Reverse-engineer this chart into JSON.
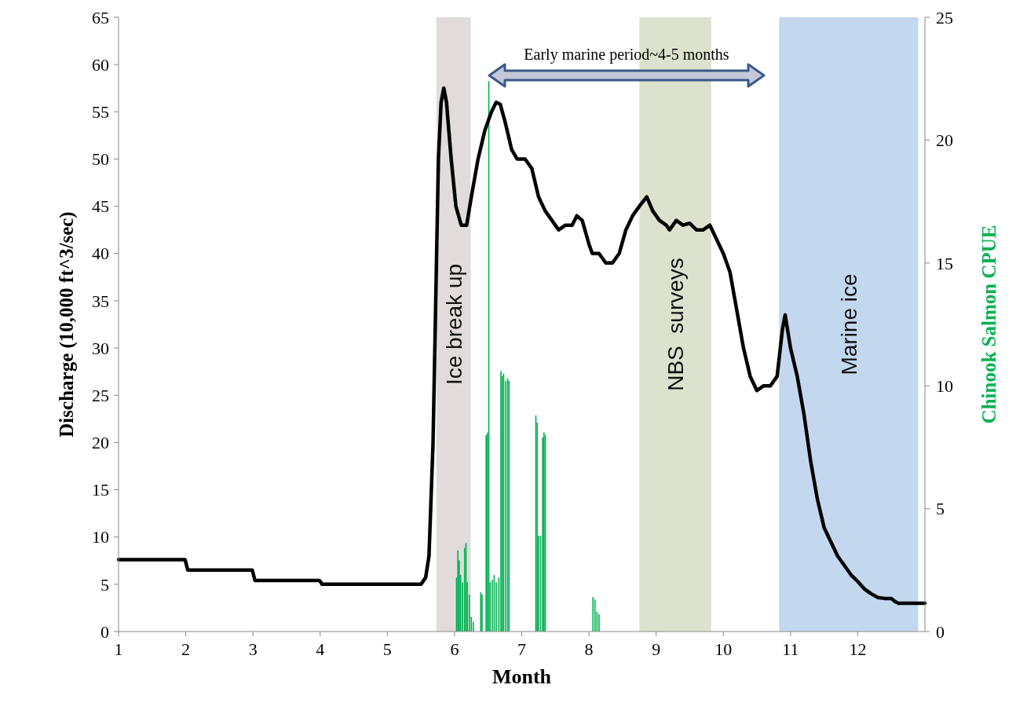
{
  "chart_data": {
    "type": "line",
    "xlabel": "Month",
    "ylabel": "Discharge (10,000 ft^3/sec)",
    "y2label": "Chinook Salmon CPUE",
    "xlim": [
      1,
      13
    ],
    "xticks": [
      1,
      2,
      3,
      4,
      5,
      6,
      7,
      8,
      9,
      10,
      11,
      12
    ],
    "ylim": [
      0,
      65
    ],
    "yticks": [
      0,
      5,
      10,
      15,
      20,
      25,
      30,
      35,
      40,
      45,
      50,
      55,
      60,
      65
    ],
    "y2lim": [
      0,
      25
    ],
    "y2ticks": [
      0,
      5,
      10,
      15,
      20,
      25
    ],
    "series": [
      {
        "color": "#000000",
        "x": [
          1,
          1.99,
          2.03,
          2.99,
          3.03,
          3.99,
          4.03,
          5.5,
          5.57,
          5.62,
          5.68,
          5.72,
          5.76,
          5.8,
          5.84,
          5.88,
          5.95,
          6.02,
          6.1,
          6.18,
          6.25,
          6.35,
          6.45,
          6.55,
          6.62,
          6.68,
          6.75,
          6.85,
          6.93,
          7.05,
          7.15,
          7.25,
          7.35,
          7.45,
          7.55,
          7.65,
          7.75,
          7.82,
          7.9,
          8.0,
          8.05,
          8.15,
          8.25,
          8.35,
          8.45,
          8.55,
          8.65,
          8.75,
          8.86,
          8.95,
          9.05,
          9.15,
          9.2,
          9.3,
          9.4,
          9.5,
          9.6,
          9.7,
          9.8,
          9.9,
          10.0,
          10.1,
          10.2,
          10.3,
          10.4,
          10.5,
          10.6,
          10.7,
          10.8,
          10.88,
          10.92,
          11.0,
          11.1,
          11.2,
          11.3,
          11.4,
          11.5,
          11.6,
          11.7,
          11.8,
          11.9,
          12.0,
          12.1,
          12.2,
          12.3,
          12.4,
          12.5,
          12.55,
          12.6,
          13
        ],
        "values": [
          7.6,
          7.6,
          6.5,
          6.5,
          5.4,
          5.4,
          5.0,
          5.0,
          5.7,
          8,
          20,
          35,
          50,
          56,
          57.5,
          56,
          50,
          45,
          43,
          43,
          46,
          50,
          53,
          55,
          56,
          55.8,
          54,
          51,
          50,
          50,
          49,
          46,
          44.5,
          43.5,
          42.5,
          43,
          43,
          44,
          43.5,
          41,
          40,
          40,
          39,
          39,
          40,
          42.5,
          44,
          45,
          46,
          44.5,
          43.5,
          43,
          42.5,
          43.5,
          43,
          43.2,
          42.5,
          42.5,
          43,
          41.5,
          40,
          38,
          34,
          30,
          27,
          25.5,
          26,
          26,
          27,
          32,
          33.5,
          30,
          27,
          23,
          18,
          14,
          11,
          9.5,
          8,
          7,
          6,
          5.3,
          4.5,
          4,
          3.6,
          3.5,
          3.5,
          3.2,
          3,
          3
        ]
      },
      {
        "type": "bar",
        "axis": "y2",
        "color": "#00b050",
        "x": [
          6.03,
          6.05,
          6.07,
          6.09,
          6.12,
          6.15,
          6.17,
          6.19,
          6.22,
          6.25,
          6.28,
          6.39,
          6.41,
          6.47,
          6.49,
          6.51,
          6.53,
          6.56,
          6.59,
          6.62,
          6.66,
          6.69,
          6.71,
          6.73,
          6.76,
          6.79,
          6.81,
          7.21,
          7.23,
          7.25,
          7.28,
          7.31,
          7.33,
          7.35,
          8.06,
          8.09,
          8.12,
          8.15
        ],
        "values": [
          2.2,
          3.3,
          2.9,
          2.3,
          2.0,
          3.4,
          3.6,
          2.0,
          1.5,
          0.6,
          0.4,
          1.6,
          1.5,
          8.0,
          8.1,
          22.4,
          2.0,
          2.1,
          2.3,
          2.0,
          2.2,
          10.6,
          10.4,
          10.5,
          10.2,
          10.3,
          10.2,
          8.8,
          8.5,
          3.9,
          3.9,
          7.9,
          8.1,
          8.0,
          1.4,
          1.3,
          0.8,
          0.7
        ]
      }
    ],
    "bands": [
      {
        "axis": "x",
        "from": 5.73,
        "to": 6.24,
        "label": "Ice break up",
        "color": "#dcd5d5"
      },
      {
        "axis": "x",
        "from": 8.75,
        "to": 9.82,
        "label": "NBS  surveys",
        "color": "#d7ddc6"
      },
      {
        "axis": "x",
        "from": 10.83,
        "to": 12.9,
        "label": "Marine ice",
        "color": "#b9d1ec"
      }
    ],
    "annotations": [
      "Early marine period~4-5 months"
    ]
  }
}
